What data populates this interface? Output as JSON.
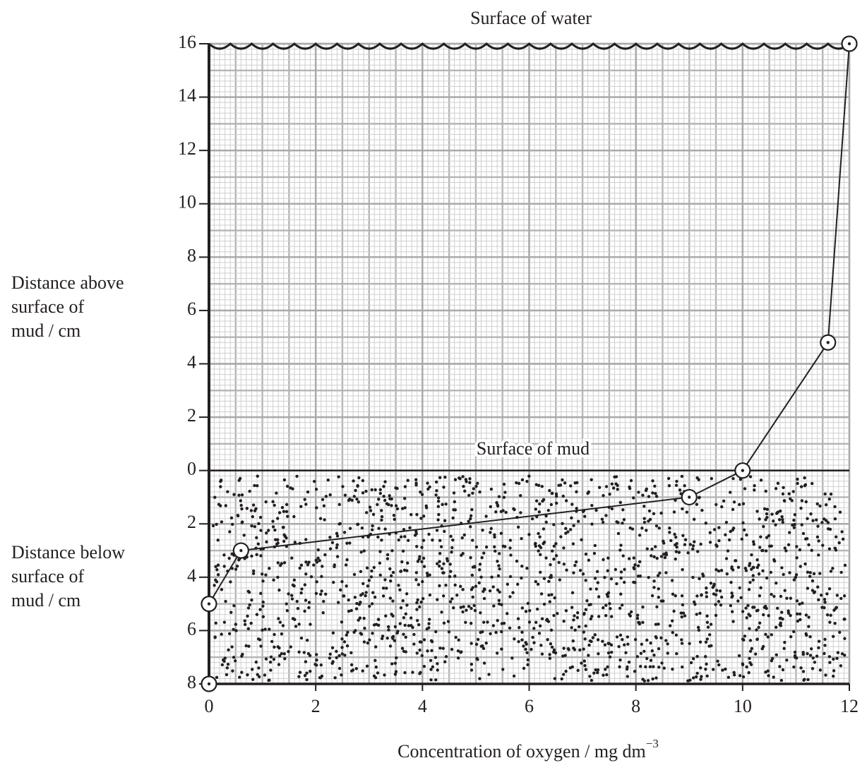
{
  "chart_data": {
    "type": "line",
    "top_annotation": "Surface of water",
    "mid_annotation": "Surface of mud",
    "y_label_above": [
      "Distance above",
      "surface of",
      "mud / cm"
    ],
    "y_label_below": [
      "Distance below",
      "surface of",
      "mud / cm"
    ],
    "x_label": "Concentration of oxygen / mg dm",
    "x_label_superscript": "−3",
    "x": [
      0,
      0,
      0.6,
      9,
      10,
      11.6,
      12
    ],
    "values": [
      -8,
      -5,
      -3,
      -1,
      0,
      4.8,
      16
    ],
    "color": "#231f20",
    "xlim": [
      0,
      12
    ],
    "xticks": [
      0,
      2,
      4,
      6,
      8,
      10,
      12
    ],
    "ylim": [
      -8,
      16
    ],
    "yticks": [
      16,
      14,
      12,
      10,
      8,
      6,
      4,
      2,
      0,
      {
        "value": -2,
        "label": "2"
      },
      {
        "value": -4,
        "label": "4"
      },
      {
        "value": -6,
        "label": "6"
      },
      {
        "value": -8,
        "label": "8"
      }
    ],
    "grid": true
  }
}
